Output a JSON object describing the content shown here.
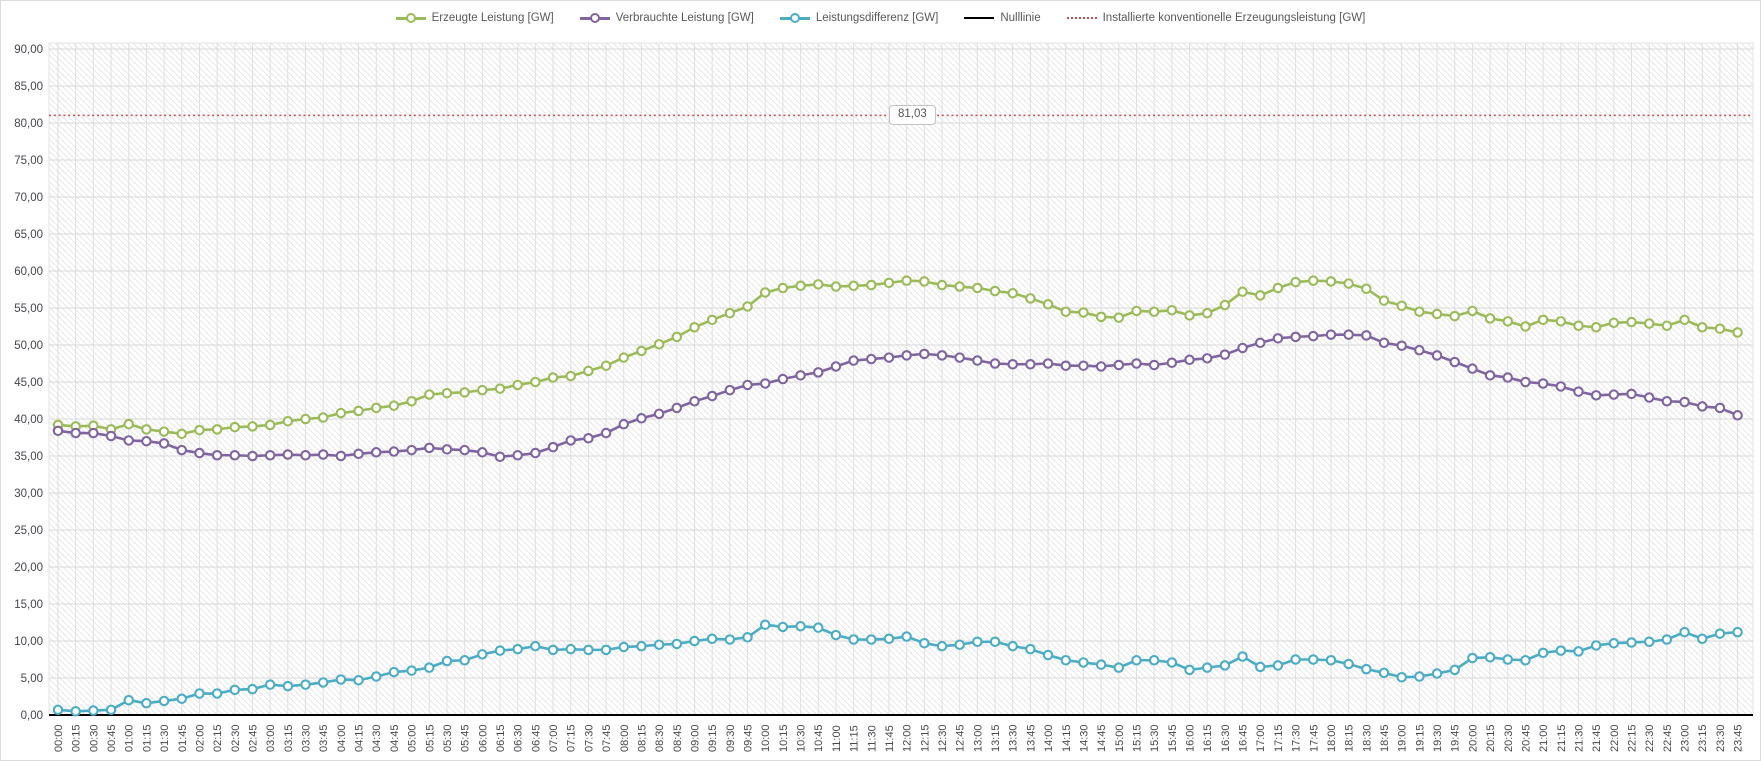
{
  "chart_data": {
    "type": "line",
    "title": "",
    "xlabel": "",
    "ylabel": "",
    "ylim": [
      0,
      90
    ],
    "y_tick_step": 5,
    "grid": true,
    "legend_position": "top-center",
    "y_tick_labels": [
      "0,00",
      "5,00",
      "10,00",
      "15,00",
      "20,00",
      "25,00",
      "30,00",
      "35,00",
      "40,00",
      "45,00",
      "50,00",
      "55,00",
      "60,00",
      "65,00",
      "70,00",
      "75,00",
      "80,00",
      "85,00",
      "90,00"
    ],
    "x_tick_labels": [
      "00:00",
      "00:15",
      "00:30",
      "00:45",
      "01:00",
      "01:15",
      "01:30",
      "01:45",
      "02:00",
      "02:15",
      "02:30",
      "02:45",
      "03:00",
      "03:15",
      "03:30",
      "03:45",
      "04:00",
      "04:15",
      "04:30",
      "04:45",
      "05:00",
      "05:15",
      "05:30",
      "05:45",
      "06:00",
      "06:15",
      "06:30",
      "06:45",
      "07:00",
      "07:15",
      "07:30",
      "07:45",
      "08:00",
      "08:15",
      "08:30",
      "08:45",
      "09:00",
      "09:15",
      "09:30",
      "09:45",
      "10:00",
      "10:15",
      "10:30",
      "10:45",
      "11:00",
      "11:15",
      "11:30",
      "11:45",
      "12:00",
      "12:15",
      "12:30",
      "12:45",
      "13:00",
      "13:15",
      "13:30",
      "13:45",
      "14:00",
      "14:15",
      "14:30",
      "14:45",
      "15:00",
      "15:15",
      "15:30",
      "15:45",
      "16:00",
      "16:15",
      "16:30",
      "16:45",
      "17:00",
      "17:15",
      "17:30",
      "17:45",
      "18:00",
      "18:15",
      "18:30",
      "18:45",
      "19:00",
      "19:15",
      "19:30",
      "19:45",
      "20:00",
      "20:15",
      "20:30",
      "20:45",
      "21:00",
      "21:15",
      "21:30",
      "21:45",
      "22:00",
      "22:15",
      "22:30",
      "22:45",
      "23:00",
      "23:15",
      "23:30",
      "23:45"
    ],
    "series": [
      {
        "name": "Erzeugte Leistung [GW]",
        "color": "#9BBB59",
        "marker": "circle",
        "values": [
          39.2,
          39.0,
          39.1,
          38.6,
          39.3,
          38.6,
          38.3,
          38.0,
          38.5,
          38.6,
          38.9,
          39.0,
          39.2,
          39.7,
          40.0,
          40.2,
          40.8,
          41.1,
          41.5,
          41.8,
          42.4,
          43.3,
          43.5,
          43.6,
          43.9,
          44.1,
          44.6,
          45.0,
          45.6,
          45.8,
          46.5,
          47.2,
          48.3,
          49.2,
          50.1,
          51.1,
          52.4,
          53.4,
          54.3,
          55.2,
          57.1,
          57.7,
          58.0,
          58.2,
          57.9,
          58.0,
          58.1,
          58.4,
          58.7,
          58.6,
          58.1,
          57.9,
          57.7,
          57.3,
          57.0,
          56.3,
          55.5,
          54.5,
          54.4,
          53.8,
          53.7,
          54.6,
          54.5,
          54.7,
          54.0,
          54.3,
          55.4,
          57.2,
          56.7,
          57.7,
          58.5,
          58.7,
          58.6,
          58.3,
          57.6,
          56.0,
          55.3,
          54.5,
          54.2,
          53.9,
          54.6,
          53.6,
          53.2,
          52.5,
          53.4,
          53.2,
          52.6,
          52.4,
          53.0,
          53.1,
          52.9,
          52.6,
          53.4,
          52.4,
          52.2,
          51.7
        ]
      },
      {
        "name": "Verbrauchte Leistung [GW]",
        "color": "#8064A2",
        "marker": "circle",
        "values": [
          38.4,
          38.1,
          38.1,
          37.7,
          37.1,
          37.0,
          36.7,
          35.8,
          35.4,
          35.1,
          35.1,
          35.0,
          35.1,
          35.2,
          35.1,
          35.2,
          35.0,
          35.3,
          35.5,
          35.6,
          35.8,
          36.1,
          35.9,
          35.8,
          35.5,
          34.9,
          35.1,
          35.4,
          36.2,
          37.1,
          37.4,
          38.1,
          39.3,
          40.1,
          40.7,
          41.5,
          42.4,
          43.1,
          43.9,
          44.6,
          44.8,
          45.4,
          45.9,
          46.3,
          47.1,
          47.9,
          48.1,
          48.3,
          48.6,
          48.8,
          48.6,
          48.3,
          47.9,
          47.5,
          47.4,
          47.4,
          47.5,
          47.2,
          47.2,
          47.1,
          47.3,
          47.5,
          47.3,
          47.6,
          48.0,
          48.2,
          48.7,
          49.6,
          50.3,
          50.9,
          51.1,
          51.2,
          51.4,
          51.4,
          51.3,
          50.3,
          49.9,
          49.3,
          48.6,
          47.7,
          46.8,
          45.9,
          45.6,
          45.0,
          44.8,
          44.4,
          43.7,
          43.2,
          43.3,
          43.4,
          42.9,
          42.4,
          42.3,
          41.7,
          41.5,
          40.5
        ]
      },
      {
        "name": "Leistungsdifferenz [GW]",
        "color": "#4BACC6",
        "marker": "circle",
        "values": [
          0.7,
          0.5,
          0.6,
          0.7,
          2.0,
          1.6,
          1.9,
          2.2,
          2.9,
          2.9,
          3.4,
          3.5,
          4.1,
          3.9,
          4.1,
          4.4,
          4.8,
          4.7,
          5.2,
          5.8,
          6.0,
          6.4,
          7.3,
          7.4,
          8.2,
          8.7,
          8.9,
          9.3,
          8.8,
          8.9,
          8.8,
          8.8,
          9.2,
          9.3,
          9.5,
          9.6,
          10.0,
          10.3,
          10.2,
          10.5,
          12.2,
          11.9,
          12.0,
          11.8,
          10.8,
          10.2,
          10.2,
          10.3,
          10.6,
          9.7,
          9.3,
          9.5,
          9.9,
          9.9,
          9.3,
          8.9,
          8.1,
          7.4,
          7.1,
          6.8,
          6.4,
          7.4,
          7.4,
          7.1,
          6.1,
          6.4,
          6.7,
          7.9,
          6.5,
          6.7,
          7.5,
          7.5,
          7.4,
          6.9,
          6.2,
          5.7,
          5.1,
          5.2,
          5.6,
          6.1,
          7.7,
          7.8,
          7.5,
          7.4,
          8.4,
          8.7,
          8.6,
          9.4,
          9.7,
          9.8,
          9.9,
          10.2,
          11.2,
          10.3,
          11.0,
          11.2
        ]
      }
    ],
    "reference_lines": [
      {
        "name": "Nulllinie",
        "color": "#000000",
        "style": "solid",
        "value": 0
      },
      {
        "name": "Installierte konventionelle Erzeugungsleistung [GW]",
        "color": "#C0504D",
        "style": "dotted",
        "value": 81.03,
        "label": "81,03"
      }
    ]
  }
}
